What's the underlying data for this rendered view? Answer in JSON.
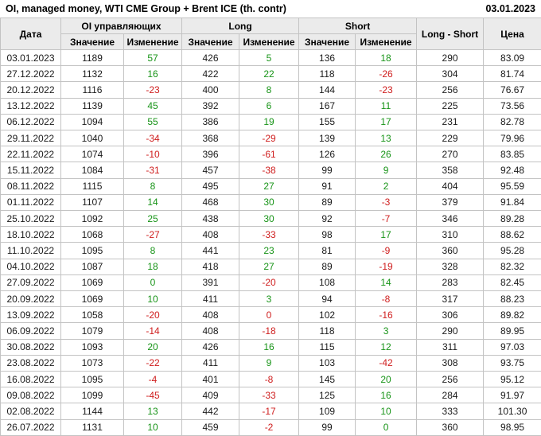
{
  "colors": {
    "positive": "#189418",
    "negative": "#cf1d1d",
    "header_background": "#ebebeb",
    "border": "#c3c3c3"
  },
  "chart_data": {
    "type": "table",
    "title": "OI, managed money, WTI CME Group + Brent ICE (th. contr)",
    "report_date": "03.01.2023",
    "columns": {
      "date": "Дата",
      "oi_group": "OI управляющих",
      "long_group": "Long",
      "short_group": "Short",
      "net": "Long - Short",
      "price": "Цена",
      "value": "Значение",
      "change": "Изменение"
    },
    "rows": [
      {
        "date": "03.01.2023",
        "oi": 1189,
        "oi_chg": 57,
        "oi_chg_color": "green",
        "long": 426,
        "long_chg": 5,
        "long_chg_color": "green",
        "short": 136,
        "short_chg": 18,
        "short_chg_color": "green",
        "net": 290,
        "price": "83.09"
      },
      {
        "date": "27.12.2022",
        "oi": 1132,
        "oi_chg": 16,
        "oi_chg_color": "green",
        "long": 422,
        "long_chg": 22,
        "long_chg_color": "green",
        "short": 118,
        "short_chg": -26,
        "short_chg_color": "red",
        "net": 304,
        "price": "81.74"
      },
      {
        "date": "20.12.2022",
        "oi": 1116,
        "oi_chg": -23,
        "oi_chg_color": "red",
        "long": 400,
        "long_chg": 8,
        "long_chg_color": "green",
        "short": 144,
        "short_chg": -23,
        "short_chg_color": "red",
        "net": 256,
        "price": "76.67"
      },
      {
        "date": "13.12.2022",
        "oi": 1139,
        "oi_chg": 45,
        "oi_chg_color": "green",
        "long": 392,
        "long_chg": 6,
        "long_chg_color": "green",
        "short": 167,
        "short_chg": 11,
        "short_chg_color": "green",
        "net": 225,
        "price": "73.56"
      },
      {
        "date": "06.12.2022",
        "oi": 1094,
        "oi_chg": 55,
        "oi_chg_color": "green",
        "long": 386,
        "long_chg": 19,
        "long_chg_color": "green",
        "short": 155,
        "short_chg": 17,
        "short_chg_color": "green",
        "net": 231,
        "price": "82.78"
      },
      {
        "date": "29.11.2022",
        "oi": 1040,
        "oi_chg": -34,
        "oi_chg_color": "red",
        "long": 368,
        "long_chg": -29,
        "long_chg_color": "red",
        "short": 139,
        "short_chg": 13,
        "short_chg_color": "green",
        "net": 229,
        "price": "79.96"
      },
      {
        "date": "22.11.2022",
        "oi": 1074,
        "oi_chg": -10,
        "oi_chg_color": "red",
        "long": 396,
        "long_chg": -61,
        "long_chg_color": "red",
        "short": 126,
        "short_chg": 26,
        "short_chg_color": "green",
        "net": 270,
        "price": "83.85"
      },
      {
        "date": "15.11.2022",
        "oi": 1084,
        "oi_chg": -31,
        "oi_chg_color": "red",
        "long": 457,
        "long_chg": -38,
        "long_chg_color": "red",
        "short": 99,
        "short_chg": 9,
        "short_chg_color": "green",
        "net": 358,
        "price": "92.48"
      },
      {
        "date": "08.11.2022",
        "oi": 1115,
        "oi_chg": 8,
        "oi_chg_color": "green",
        "long": 495,
        "long_chg": 27,
        "long_chg_color": "green",
        "short": 91,
        "short_chg": 2,
        "short_chg_color": "green",
        "net": 404,
        "price": "95.59"
      },
      {
        "date": "01.11.2022",
        "oi": 1107,
        "oi_chg": 14,
        "oi_chg_color": "green",
        "long": 468,
        "long_chg": 30,
        "long_chg_color": "green",
        "short": 89,
        "short_chg": -3,
        "short_chg_color": "red",
        "net": 379,
        "price": "91.84"
      },
      {
        "date": "25.10.2022",
        "oi": 1092,
        "oi_chg": 25,
        "oi_chg_color": "green",
        "long": 438,
        "long_chg": 30,
        "long_chg_color": "green",
        "short": 92,
        "short_chg": -7,
        "short_chg_color": "red",
        "net": 346,
        "price": "89.28"
      },
      {
        "date": "18.10.2022",
        "oi": 1068,
        "oi_chg": -27,
        "oi_chg_color": "red",
        "long": 408,
        "long_chg": -33,
        "long_chg_color": "red",
        "short": 98,
        "short_chg": 17,
        "short_chg_color": "green",
        "net": 310,
        "price": "88.62"
      },
      {
        "date": "11.10.2022",
        "oi": 1095,
        "oi_chg": 8,
        "oi_chg_color": "green",
        "long": 441,
        "long_chg": 23,
        "long_chg_color": "green",
        "short": 81,
        "short_chg": -9,
        "short_chg_color": "red",
        "net": 360,
        "price": "95.28"
      },
      {
        "date": "04.10.2022",
        "oi": 1087,
        "oi_chg": 18,
        "oi_chg_color": "green",
        "long": 418,
        "long_chg": 27,
        "long_chg_color": "green",
        "short": 89,
        "short_chg": -19,
        "short_chg_color": "red",
        "net": 328,
        "price": "82.32"
      },
      {
        "date": "27.09.2022",
        "oi": 1069,
        "oi_chg": 0,
        "oi_chg_color": "green",
        "long": 391,
        "long_chg": -20,
        "long_chg_color": "red",
        "short": 108,
        "short_chg": 14,
        "short_chg_color": "green",
        "net": 283,
        "price": "82.45"
      },
      {
        "date": "20.09.2022",
        "oi": 1069,
        "oi_chg": 10,
        "oi_chg_color": "green",
        "long": 411,
        "long_chg": 3,
        "long_chg_color": "green",
        "short": 94,
        "short_chg": -8,
        "short_chg_color": "red",
        "net": 317,
        "price": "88.23"
      },
      {
        "date": "13.09.2022",
        "oi": 1058,
        "oi_chg": -20,
        "oi_chg_color": "red",
        "long": 408,
        "long_chg": 0,
        "long_chg_color": "red",
        "short": 102,
        "short_chg": -16,
        "short_chg_color": "red",
        "net": 306,
        "price": "89.82"
      },
      {
        "date": "06.09.2022",
        "oi": 1079,
        "oi_chg": -14,
        "oi_chg_color": "red",
        "long": 408,
        "long_chg": -18,
        "long_chg_color": "red",
        "short": 118,
        "short_chg": 3,
        "short_chg_color": "green",
        "net": 290,
        "price": "89.95"
      },
      {
        "date": "30.08.2022",
        "oi": 1093,
        "oi_chg": 20,
        "oi_chg_color": "green",
        "long": 426,
        "long_chg": 16,
        "long_chg_color": "green",
        "short": 115,
        "short_chg": 12,
        "short_chg_color": "green",
        "net": 311,
        "price": "97.03"
      },
      {
        "date": "23.08.2022",
        "oi": 1073,
        "oi_chg": -22,
        "oi_chg_color": "red",
        "long": 411,
        "long_chg": 9,
        "long_chg_color": "green",
        "short": 103,
        "short_chg": -42,
        "short_chg_color": "red",
        "net": 308,
        "price": "93.75"
      },
      {
        "date": "16.08.2022",
        "oi": 1095,
        "oi_chg": -4,
        "oi_chg_color": "red",
        "long": 401,
        "long_chg": -8,
        "long_chg_color": "red",
        "short": 145,
        "short_chg": 20,
        "short_chg_color": "green",
        "net": 256,
        "price": "95.12"
      },
      {
        "date": "09.08.2022",
        "oi": 1099,
        "oi_chg": -45,
        "oi_chg_color": "red",
        "long": 409,
        "long_chg": -33,
        "long_chg_color": "red",
        "short": 125,
        "short_chg": 16,
        "short_chg_color": "green",
        "net": 284,
        "price": "91.97"
      },
      {
        "date": "02.08.2022",
        "oi": 1144,
        "oi_chg": 13,
        "oi_chg_color": "green",
        "long": 442,
        "long_chg": -17,
        "long_chg_color": "red",
        "short": 109,
        "short_chg": 10,
        "short_chg_color": "green",
        "net": 333,
        "price": "101.30"
      },
      {
        "date": "26.07.2022",
        "oi": 1131,
        "oi_chg": 10,
        "oi_chg_color": "green",
        "long": 459,
        "long_chg": -2,
        "long_chg_color": "red",
        "short": 99,
        "short_chg": 0,
        "short_chg_color": "green",
        "net": 360,
        "price": "98.95"
      }
    ]
  }
}
